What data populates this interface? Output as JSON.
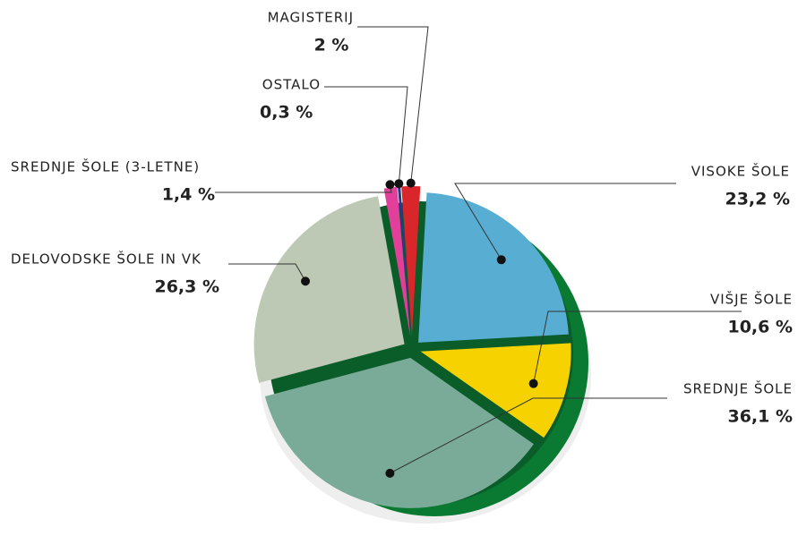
{
  "chart_data": {
    "type": "pie",
    "categories": [
      "MAGISTERIJ",
      "VISOKE ŠOLE",
      "VIŠJE ŠOLE",
      "SREDNJE ŠOLE",
      "DELOVODSKE ŠOLE IN VK",
      "SREDNJE ŠOLE (3-LETNE)",
      "OSTALO"
    ],
    "values": [
      2,
      23.2,
      10.6,
      36.1,
      26.3,
      1.4,
      0.3
    ],
    "value_labels": [
      "2 %",
      "23,2 %",
      "10,6 %",
      "36,1 %",
      "26,3 %",
      "1,4 %",
      "0,3 %"
    ],
    "colors": [
      "#d8262b",
      "#58aed2",
      "#f6d300",
      "#7aab98",
      "#bdc9b5",
      "#e23f9b",
      "#26388c"
    ]
  }
}
